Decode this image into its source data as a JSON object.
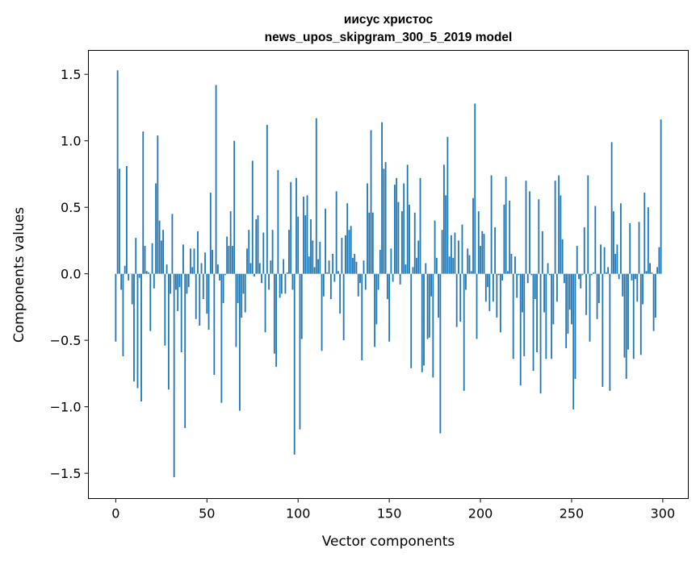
{
  "chart_data": {
    "type": "bar",
    "title_line1": "иисус христос",
    "title_line2": "news_upos_skipgram_300_5_2019 model",
    "xlabel": "Vector components",
    "ylabel": "Components values",
    "xlim": [
      -15,
      314
    ],
    "ylim": [
      -1.69,
      1.68
    ],
    "xticks": [
      0,
      50,
      100,
      150,
      200,
      250,
      300
    ],
    "xtick_labels": [
      "0",
      "50",
      "100",
      "150",
      "200",
      "250",
      "300"
    ],
    "yticks": [
      -1.5,
      -1.0,
      -0.5,
      0.0,
      0.5,
      1.0,
      1.5
    ],
    "ytick_labels": [
      "−1.5",
      "−1.0",
      "−0.5",
      "0.0",
      "0.5",
      "1.0",
      "1.5"
    ],
    "grid": false,
    "color": "#1f77b4",
    "values": [
      -0.51,
      1.53,
      0.79,
      -0.12,
      -0.62,
      0.06,
      0.81,
      -0.05,
      0.0,
      -0.23,
      -0.81,
      0.27,
      -0.86,
      -0.03,
      -0.96,
      1.07,
      0.21,
      0.02,
      0.01,
      -0.43,
      0.23,
      -0.11,
      0.68,
      1.04,
      0.4,
      0.25,
      0.33,
      -0.54,
      0.07,
      -0.87,
      -0.15,
      0.45,
      -1.53,
      -0.12,
      -0.28,
      -0.1,
      -0.59,
      0.22,
      -1.16,
      -0.15,
      -0.1,
      0.19,
      0.05,
      0.19,
      -0.34,
      0.32,
      -0.39,
      0.08,
      -0.19,
      0.16,
      -0.3,
      -0.42,
      0.61,
      0.18,
      -0.76,
      1.42,
      0.07,
      -0.05,
      -0.97,
      -0.22,
      -0.01,
      0.28,
      0.21,
      0.47,
      0.21,
      1.0,
      -0.55,
      -0.22,
      -1.03,
      -0.33,
      -0.15,
      -0.29,
      0.19,
      0.33,
      0.08,
      0.85,
      -0.02,
      0.41,
      0.44,
      0.08,
      -0.07,
      0.31,
      -0.44,
      1.12,
      -0.12,
      0.1,
      0.33,
      -0.6,
      -0.7,
      0.78,
      -0.18,
      -0.15,
      0.11,
      -0.15,
      0.01,
      0.33,
      0.69,
      -0.12,
      -1.36,
      0.72,
      0.43,
      -1.17,
      -0.49,
      0.58,
      0.44,
      0.59,
      0.13,
      0.41,
      0.25,
      0.05,
      1.17,
      0.11,
      0.24,
      -0.58,
      -0.17,
      0.49,
      0.01,
      0.1,
      -0.19,
      0.15,
      -0.06,
      0.62,
      0.02,
      -0.3,
      0.27,
      -0.5,
      0.29,
      0.53,
      0.33,
      0.36,
      0.12,
      0.15,
      0.09,
      -0.17,
      -0.07,
      -0.65,
      0.1,
      -0.12,
      0.68,
      0.46,
      1.08,
      0.46,
      -0.55,
      -0.38,
      -0.12,
      0.18,
      1.14,
      0.79,
      0.84,
      -0.19,
      -0.51,
      0.19,
      -0.06,
      0.67,
      0.72,
      0.54,
      -0.08,
      0.47,
      0.68,
      0.07,
      0.82,
      0.52,
      -0.71,
      0.05,
      0.46,
      0.12,
      0.25,
      0.72,
      -0.74,
      -0.69,
      0.08,
      -0.49,
      -0.48,
      -0.17,
      -0.78,
      0.4,
      0.12,
      -0.33,
      -1.2,
      0.33,
      0.82,
      0.59,
      1.03,
      0.13,
      0.29,
      0.12,
      0.31,
      -0.4,
      0.25,
      -0.36,
      0.37,
      -0.88,
      -0.12,
      0.19,
      0.14,
      0.02,
      0.57,
      1.28,
      -0.49,
      0.47,
      0.21,
      0.32,
      0.3,
      -0.21,
      -0.1,
      -0.28,
      0.74,
      -0.21,
      0.35,
      -0.33,
      -0.01,
      -0.44,
      -0.05,
      0.52,
      0.73,
      0.02,
      0.55,
      0.15,
      -0.64,
      0.13,
      -0.18,
      -0.01,
      -0.84,
      -0.29,
      -0.62,
      0.7,
      -0.07,
      0.62,
      -0.01,
      -0.73,
      -0.19,
      -0.59,
      0.56,
      -0.9,
      0.32,
      -0.29,
      -0.64,
      0.08,
      -0.01,
      -0.64,
      -0.38,
      0.7,
      -0.21,
      0.74,
      0.59,
      0.26,
      -0.07,
      -0.56,
      -0.45,
      -0.27,
      -0.38,
      -1.02,
      -0.79,
      0.21,
      -0.04,
      -0.11,
      -0.01,
      0.35,
      -0.31,
      0.74,
      -0.51,
      -0.01,
      0.01,
      0.51,
      -0.34,
      -0.22,
      0.22,
      -0.85,
      0.2,
      0.01,
      0.05,
      -0.88,
      0.99,
      0.47,
      0.15,
      0.22,
      -0.04,
      0.53,
      -0.17,
      -0.63,
      -0.79,
      -0.57,
      0.38,
      -0.05,
      -0.64,
      -0.04,
      -0.21,
      0.39,
      -0.61,
      -0.23,
      0.61,
      0.02,
      0.5,
      0.08,
      0.01,
      -0.43,
      -0.33,
      0.05,
      0.2,
      1.16
    ]
  }
}
